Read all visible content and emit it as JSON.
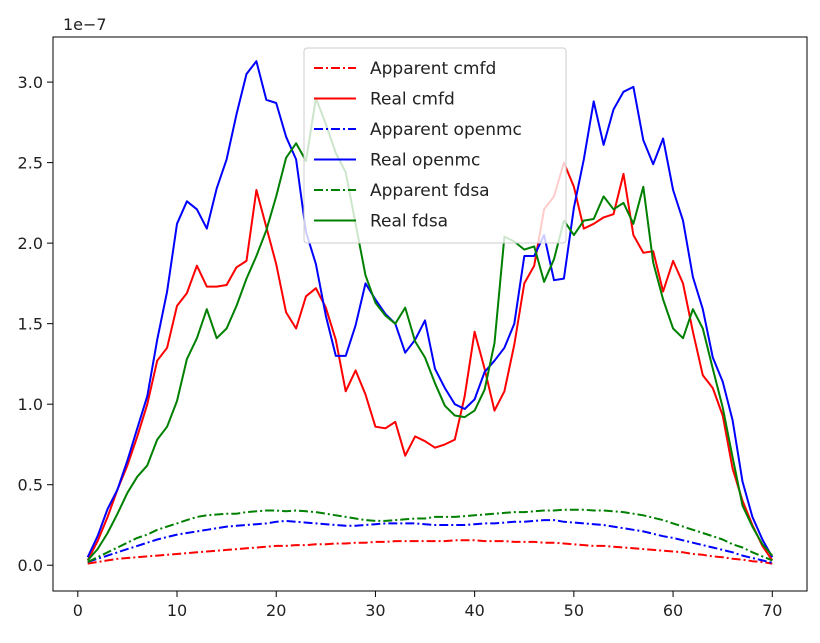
{
  "chart_data": {
    "type": "line",
    "title": "",
    "xlabel": "",
    "ylabel": "",
    "y_offset_text": "1e−7",
    "xlim": [
      -2.5,
      73.5
    ],
    "ylim": [
      -0.16,
      3.28
    ],
    "x_ticks": [
      0,
      10,
      20,
      30,
      40,
      50,
      60,
      70
    ],
    "x_tick_labels": [
      "0",
      "10",
      "20",
      "30",
      "40",
      "50",
      "60",
      "70"
    ],
    "y_ticks": [
      0.0,
      0.5,
      1.0,
      1.5,
      2.0,
      2.5,
      3.0
    ],
    "y_tick_labels": [
      "0.0",
      "0.5",
      "1.0",
      "1.5",
      "2.0",
      "2.5",
      "3.0"
    ],
    "grid": false,
    "legend_position": "upper-center",
    "x": [
      1,
      2,
      3,
      4,
      5,
      6,
      7,
      8,
      9,
      10,
      11,
      12,
      13,
      14,
      15,
      16,
      17,
      18,
      19,
      20,
      21,
      22,
      23,
      24,
      25,
      26,
      27,
      28,
      29,
      30,
      31,
      32,
      33,
      34,
      35,
      36,
      37,
      38,
      39,
      40,
      41,
      42,
      43,
      44,
      45,
      46,
      47,
      48,
      49,
      50,
      51,
      52,
      53,
      54,
      55,
      56,
      57,
      58,
      59,
      60,
      61,
      62,
      63,
      64,
      65,
      66,
      67,
      68,
      69,
      70
    ],
    "series": [
      {
        "name": "Apparent cmfd",
        "color": "#ff0000",
        "style": "dashdot",
        "values": [
          0.01,
          0.02,
          0.03,
          0.04,
          0.045,
          0.05,
          0.055,
          0.06,
          0.065,
          0.07,
          0.075,
          0.08,
          0.085,
          0.09,
          0.095,
          0.1,
          0.105,
          0.11,
          0.115,
          0.12,
          0.12,
          0.125,
          0.125,
          0.13,
          0.13,
          0.135,
          0.135,
          0.14,
          0.14,
          0.145,
          0.145,
          0.15,
          0.15,
          0.15,
          0.15,
          0.15,
          0.15,
          0.155,
          0.155,
          0.155,
          0.15,
          0.15,
          0.15,
          0.145,
          0.145,
          0.145,
          0.14,
          0.14,
          0.135,
          0.13,
          0.125,
          0.12,
          0.12,
          0.115,
          0.11,
          0.105,
          0.1,
          0.095,
          0.09,
          0.085,
          0.08,
          0.07,
          0.065,
          0.055,
          0.05,
          0.04,
          0.035,
          0.025,
          0.02,
          0.01
        ]
      },
      {
        "name": "Real cmfd",
        "color": "#ff0000",
        "style": "solid",
        "values": [
          0.03,
          0.15,
          0.3,
          0.47,
          0.62,
          0.8,
          1.0,
          1.27,
          1.35,
          1.61,
          1.69,
          1.86,
          1.73,
          1.73,
          1.74,
          1.85,
          1.89,
          2.33,
          2.1,
          1.87,
          1.57,
          1.47,
          1.67,
          1.72,
          1.6,
          1.4,
          1.08,
          1.21,
          1.06,
          0.86,
          0.85,
          0.89,
          0.68,
          0.8,
          0.77,
          0.73,
          0.75,
          0.78,
          1.05,
          1.45,
          1.22,
          0.96,
          1.08,
          1.37,
          1.75,
          1.86,
          2.21,
          2.29,
          2.5,
          2.35,
          2.09,
          2.12,
          2.16,
          2.18,
          2.43,
          2.05,
          1.94,
          1.95,
          1.7,
          1.89,
          1.75,
          1.45,
          1.18,
          1.1,
          0.93,
          0.6,
          0.4,
          0.25,
          0.12,
          0.03
        ]
      },
      {
        "name": "Apparent openmc",
        "color": "#0000ff",
        "style": "dashdot",
        "values": [
          0.02,
          0.04,
          0.06,
          0.08,
          0.1,
          0.12,
          0.14,
          0.16,
          0.175,
          0.19,
          0.2,
          0.21,
          0.22,
          0.23,
          0.24,
          0.245,
          0.25,
          0.255,
          0.26,
          0.27,
          0.275,
          0.27,
          0.265,
          0.26,
          0.255,
          0.25,
          0.245,
          0.245,
          0.25,
          0.255,
          0.26,
          0.26,
          0.26,
          0.26,
          0.255,
          0.25,
          0.25,
          0.25,
          0.25,
          0.255,
          0.26,
          0.26,
          0.265,
          0.27,
          0.27,
          0.275,
          0.28,
          0.28,
          0.27,
          0.265,
          0.26,
          0.255,
          0.25,
          0.24,
          0.23,
          0.22,
          0.21,
          0.195,
          0.18,
          0.17,
          0.155,
          0.14,
          0.125,
          0.11,
          0.095,
          0.08,
          0.06,
          0.045,
          0.03,
          0.015
        ]
      },
      {
        "name": "Real openmc",
        "color": "#0000ff",
        "style": "solid",
        "values": [
          0.05,
          0.18,
          0.35,
          0.47,
          0.65,
          0.85,
          1.05,
          1.4,
          1.7,
          2.12,
          2.26,
          2.21,
          2.09,
          2.34,
          2.52,
          2.8,
          3.05,
          3.13,
          2.89,
          2.87,
          2.66,
          2.52,
          2.07,
          1.87,
          1.55,
          1.3,
          1.3,
          1.49,
          1.75,
          1.65,
          1.56,
          1.5,
          1.32,
          1.4,
          1.52,
          1.22,
          1.1,
          1.0,
          0.97,
          1.03,
          1.2,
          1.27,
          1.35,
          1.5,
          1.92,
          1.92,
          2.05,
          1.77,
          1.78,
          2.22,
          2.52,
          2.88,
          2.61,
          2.83,
          2.94,
          2.97,
          2.64,
          2.49,
          2.65,
          2.33,
          2.14,
          1.79,
          1.59,
          1.29,
          1.14,
          0.9,
          0.52,
          0.3,
          0.16,
          0.05
        ]
      },
      {
        "name": "Apparent fdsa",
        "color": "#008000",
        "style": "dashdot",
        "values": [
          0.02,
          0.05,
          0.08,
          0.11,
          0.14,
          0.17,
          0.19,
          0.22,
          0.24,
          0.26,
          0.28,
          0.3,
          0.31,
          0.315,
          0.32,
          0.32,
          0.33,
          0.335,
          0.34,
          0.34,
          0.335,
          0.34,
          0.335,
          0.33,
          0.32,
          0.31,
          0.3,
          0.29,
          0.28,
          0.275,
          0.275,
          0.28,
          0.285,
          0.29,
          0.29,
          0.3,
          0.3,
          0.3,
          0.305,
          0.31,
          0.315,
          0.32,
          0.325,
          0.33,
          0.33,
          0.335,
          0.34,
          0.34,
          0.345,
          0.345,
          0.345,
          0.34,
          0.34,
          0.335,
          0.33,
          0.32,
          0.31,
          0.295,
          0.28,
          0.26,
          0.24,
          0.22,
          0.2,
          0.18,
          0.16,
          0.13,
          0.11,
          0.08,
          0.055,
          0.03
        ]
      },
      {
        "name": "Real fdsa",
        "color": "#008000",
        "style": "solid",
        "values": [
          0.03,
          0.1,
          0.2,
          0.32,
          0.45,
          0.55,
          0.62,
          0.78,
          0.86,
          1.02,
          1.28,
          1.41,
          1.59,
          1.41,
          1.47,
          1.61,
          1.78,
          1.92,
          2.08,
          2.29,
          2.53,
          2.62,
          2.51,
          2.9,
          2.74,
          2.56,
          2.44,
          2.12,
          1.8,
          1.63,
          1.55,
          1.5,
          1.6,
          1.39,
          1.29,
          1.13,
          0.99,
          0.93,
          0.92,
          0.96,
          1.09,
          1.38,
          2.04,
          2.01,
          1.96,
          1.98,
          1.76,
          1.9,
          2.14,
          2.05,
          2.14,
          2.15,
          2.29,
          2.21,
          2.25,
          2.12,
          2.35,
          1.88,
          1.65,
          1.47,
          1.41,
          1.59,
          1.47,
          1.22,
          0.98,
          0.67,
          0.37,
          0.24,
          0.13,
          0.06
        ]
      }
    ]
  }
}
